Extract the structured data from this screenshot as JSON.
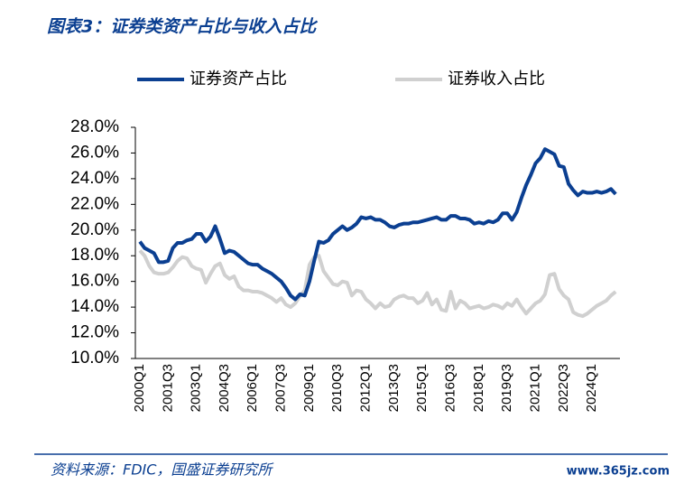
{
  "chart_data": {
    "type": "line",
    "title": "图表3：证券类资产占比与收入占比",
    "source": "资料来源：FDIC，国盛证券研究所",
    "watermark": "www.365jz.com",
    "categories": [
      "2000Q1",
      null,
      null,
      null,
      null,
      null,
      "2001Q3",
      null,
      null,
      null,
      null,
      null,
      "2003Q1",
      null,
      null,
      null,
      null,
      null,
      "2004Q3",
      null,
      null,
      null,
      null,
      null,
      "2006Q1",
      null,
      null,
      null,
      null,
      null,
      "2007Q3",
      null,
      null,
      null,
      null,
      null,
      "2009Q1",
      null,
      null,
      null,
      null,
      null,
      "2010Q3",
      null,
      null,
      null,
      null,
      null,
      "2012Q1",
      null,
      null,
      null,
      null,
      null,
      "2013Q3",
      null,
      null,
      null,
      null,
      null,
      "2015Q1",
      null,
      null,
      null,
      null,
      null,
      "2016Q3",
      null,
      null,
      null,
      null,
      null,
      "2018Q1",
      null,
      null,
      null,
      null,
      null,
      "2019Q3",
      null,
      null,
      null,
      null,
      null,
      "2021Q1",
      null,
      null,
      null,
      null,
      null,
      "2022Q3",
      null,
      null,
      null,
      null,
      null,
      "2024Q1",
      null,
      null,
      null,
      null,
      null
    ],
    "series": [
      {
        "name": "证券资产占比",
        "color": "#0b3f91",
        "width": 4,
        "values": [
          19.1,
          18.6,
          18.4,
          18.2,
          17.5,
          17.5,
          17.6,
          18.6,
          19.0,
          19.0,
          19.2,
          19.3,
          19.7,
          19.7,
          19.1,
          19.5,
          20.3,
          19.3,
          18.2,
          18.4,
          18.3,
          18.0,
          17.7,
          17.4,
          17.3,
          17.3,
          17.0,
          16.8,
          16.6,
          16.3,
          16.0,
          15.5,
          14.9,
          14.6,
          15.0,
          14.9,
          16.0,
          17.6,
          19.1,
          19.0,
          19.2,
          19.7,
          20.0,
          20.3,
          20.0,
          20.2,
          20.5,
          21.0,
          20.9,
          21.0,
          20.8,
          20.8,
          20.6,
          20.3,
          20.2,
          20.4,
          20.5,
          20.5,
          20.6,
          20.6,
          20.7,
          20.8,
          20.9,
          21.0,
          20.8,
          20.8,
          21.1,
          21.1,
          20.9,
          20.9,
          20.8,
          20.5,
          20.6,
          20.5,
          20.7,
          20.6,
          20.8,
          21.3,
          21.3,
          20.8,
          21.4,
          22.5,
          23.5,
          24.3,
          25.2,
          25.6,
          26.3,
          26.1,
          25.9,
          25.0,
          24.9,
          23.6,
          23.1,
          22.7,
          23.0,
          22.9,
          22.9,
          23.0,
          22.9,
          23.0,
          23.2,
          22.8
        ]
      },
      {
        "name": "证券收入占比",
        "color": "#d0d0d0",
        "width": 4,
        "values": [
          18.4,
          18.0,
          17.2,
          16.7,
          16.6,
          16.6,
          16.7,
          17.1,
          17.6,
          17.9,
          17.8,
          17.2,
          17.0,
          16.9,
          15.9,
          16.6,
          17.2,
          17.4,
          16.5,
          16.2,
          16.4,
          15.6,
          15.3,
          15.3,
          15.2,
          15.2,
          15.1,
          14.9,
          14.7,
          14.4,
          14.7,
          14.2,
          14.0,
          14.3,
          14.9,
          15.3,
          17.3,
          17.9,
          18.0,
          16.8,
          16.3,
          15.8,
          15.7,
          16.0,
          15.9,
          14.9,
          15.3,
          15.2,
          14.6,
          14.3,
          13.9,
          14.3,
          14.0,
          14.1,
          14.6,
          14.8,
          14.9,
          14.7,
          14.7,
          14.3,
          14.5,
          15.1,
          14.2,
          14.6,
          13.8,
          13.7,
          15.2,
          13.9,
          14.5,
          14.3,
          13.9,
          14.0,
          14.1,
          13.9,
          14.0,
          14.2,
          14.1,
          13.9,
          14.3,
          14.1,
          14.6,
          14.0,
          13.5,
          13.9,
          14.3,
          14.5,
          15.0,
          16.5,
          16.6,
          15.4,
          14.9,
          14.6,
          13.6,
          13.4,
          13.3,
          13.5,
          13.8,
          14.1,
          14.3,
          14.5,
          14.9,
          15.2
        ]
      }
    ],
    "ylim": [
      10,
      28
    ],
    "yticks": [
      {
        "value": 10,
        "label": "10.0%"
      },
      {
        "value": 12,
        "label": "12.0%"
      },
      {
        "value": 14,
        "label": "14.0%"
      },
      {
        "value": 16,
        "label": "16.0%"
      },
      {
        "value": 18,
        "label": "18.0%"
      },
      {
        "value": 20,
        "label": "20.0%"
      },
      {
        "value": 22,
        "label": "22.0%"
      },
      {
        "value": 24,
        "label": "24.0%"
      },
      {
        "value": 26,
        "label": "26.0%"
      },
      {
        "value": 28,
        "label": "28.0%"
      }
    ],
    "grid": false,
    "legend": "top"
  }
}
